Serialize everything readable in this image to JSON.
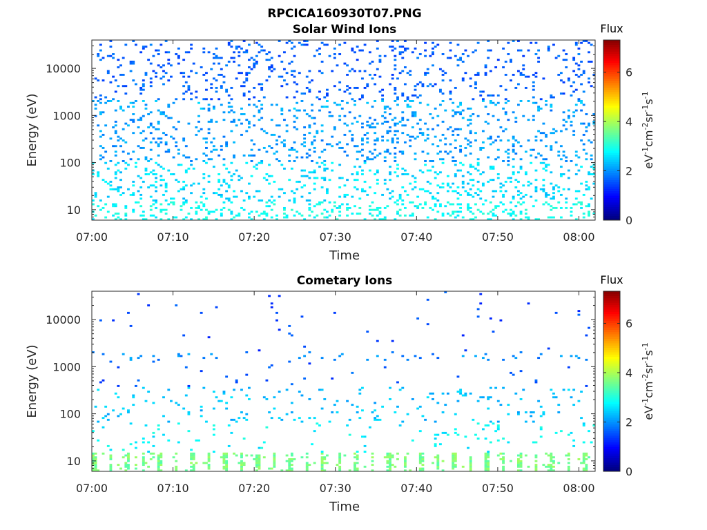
{
  "figure": {
    "title": "RPCICA160930T07.PNG"
  },
  "chart_data": [
    {
      "type": "heatmap",
      "title": "Solar Wind Ions",
      "xlabel": "Time",
      "ylabel": "Energy (eV)",
      "x_ticks": [
        "07:00",
        "07:10",
        "07:20",
        "07:30",
        "07:40",
        "07:50",
        "08:00"
      ],
      "y_ticks": [
        "10",
        "100",
        "1000",
        "10000"
      ],
      "y_scale": "log",
      "ylim": [
        6,
        40000
      ],
      "xlim_minutes": [
        0,
        62
      ],
      "colorbar": {
        "title": "Flux",
        "ticks": [
          "0",
          "2",
          "4",
          "6"
        ],
        "range": [
          0,
          7.3
        ],
        "colormap": "jet"
      },
      "description_values": {
        "low_energy_flux_level": 2.8,
        "high_energy_flux_level": 1.6,
        "band_1600eV_flux_level": 2.2
      }
    },
    {
      "type": "heatmap",
      "title": "Cometary Ions",
      "xlabel": "Time",
      "ylabel": "Energy (eV)",
      "x_ticks": [
        "07:00",
        "07:10",
        "07:20",
        "07:30",
        "07:40",
        "07:50",
        "08:00"
      ],
      "y_ticks": [
        "10",
        "100",
        "1000",
        "10000"
      ],
      "y_scale": "log",
      "ylim": [
        6,
        40000
      ],
      "xlim_minutes": [
        0,
        62
      ],
      "colorbar": {
        "title": "Flux",
        "ticks": [
          "0",
          "2",
          "4",
          "6"
        ],
        "range": [
          0,
          7.3
        ],
        "colormap": "jet"
      },
      "description_values": {
        "low_energy_flux_level": 3.6,
        "high_energy_flux_level": 1.4,
        "band_1600eV_flux_level": 1.9
      }
    }
  ]
}
